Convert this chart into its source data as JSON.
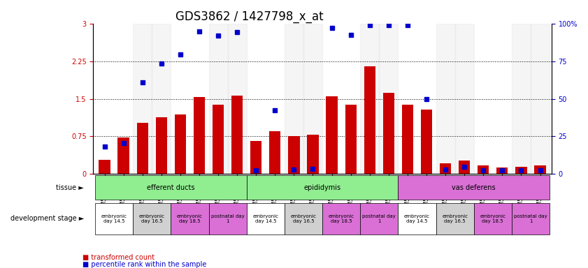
{
  "title": "GDS3862 / 1427798_x_at",
  "samples": [
    "GSM560923",
    "GSM560924",
    "GSM560925",
    "GSM560926",
    "GSM560927",
    "GSM560928",
    "GSM560929",
    "GSM560930",
    "GSM560931",
    "GSM560932",
    "GSM560933",
    "GSM560934",
    "GSM560935",
    "GSM560936",
    "GSM560937",
    "GSM560938",
    "GSM560939",
    "GSM560940",
    "GSM560941",
    "GSM560942",
    "GSM560943",
    "GSM560944",
    "GSM560945",
    "GSM560946"
  ],
  "red_values": [
    0.28,
    0.72,
    1.02,
    1.13,
    1.18,
    1.53,
    1.38,
    1.57,
    0.65,
    0.85,
    0.76,
    0.78,
    1.55,
    1.38,
    2.15,
    1.62,
    1.38,
    1.28,
    0.21,
    0.26,
    0.16,
    0.13,
    0.14,
    0.16
  ],
  "blue_values": [
    0.55,
    0.62,
    1.83,
    2.21,
    2.39,
    2.85,
    2.77,
    2.83,
    0.07,
    1.27,
    0.08,
    0.09,
    2.92,
    2.78,
    2.97,
    2.97,
    2.97,
    1.49,
    0.08,
    0.14,
    0.07,
    0.07,
    0.07,
    0.07
  ],
  "tissues": [
    {
      "name": "efferent ducts",
      "start": 0,
      "end": 8,
      "color": "#90EE90"
    },
    {
      "name": "epididymis",
      "start": 8,
      "end": 16,
      "color": "#90EE90"
    },
    {
      "name": "vas deferens",
      "start": 16,
      "end": 24,
      "color": "#DA70D6"
    }
  ],
  "stages": [
    {
      "name": "embryonic\nday 14.5",
      "start": 0,
      "end": 2,
      "color": "#FFFFFF"
    },
    {
      "name": "embryonic\nday 16.5",
      "start": 2,
      "end": 4,
      "color": "#E8E8E8"
    },
    {
      "name": "embryonic\nday 18.5",
      "start": 4,
      "end": 6,
      "color": "#DA70D6"
    },
    {
      "name": "postnatal day\n1",
      "start": 6,
      "end": 8,
      "color": "#DA70D6"
    },
    {
      "name": "embryonic\nday 14.5",
      "start": 8,
      "end": 10,
      "color": "#FFFFFF"
    },
    {
      "name": "embryonic\nday 16.5",
      "start": 10,
      "end": 12,
      "color": "#E8E8E8"
    },
    {
      "name": "embryonic\nday 18.5",
      "start": 12,
      "end": 14,
      "color": "#DA70D6"
    },
    {
      "name": "postnatal day\n1",
      "start": 14,
      "end": 16,
      "color": "#DA70D6"
    },
    {
      "name": "embryonic\nday 14.5",
      "start": 16,
      "end": 18,
      "color": "#FFFFFF"
    },
    {
      "name": "embryonic\nday 16.5",
      "start": 18,
      "end": 20,
      "color": "#E8E8E8"
    },
    {
      "name": "embryonic\nday 18.5",
      "start": 20,
      "end": 22,
      "color": "#DA70D6"
    },
    {
      "name": "postnatal day\n1",
      "start": 22,
      "end": 24,
      "color": "#DA70D6"
    }
  ],
  "ylim_left": [
    0,
    3
  ],
  "ylim_right": [
    0,
    100
  ],
  "yticks_left": [
    0,
    0.75,
    1.5,
    2.25,
    3
  ],
  "yticks_right": [
    0,
    25,
    50,
    75,
    100
  ],
  "bar_color": "#CC0000",
  "dot_color": "#0000CC",
  "background_color": "#FFFFFF",
  "title_fontsize": 12,
  "tick_fontsize": 7,
  "label_fontsize": 8
}
